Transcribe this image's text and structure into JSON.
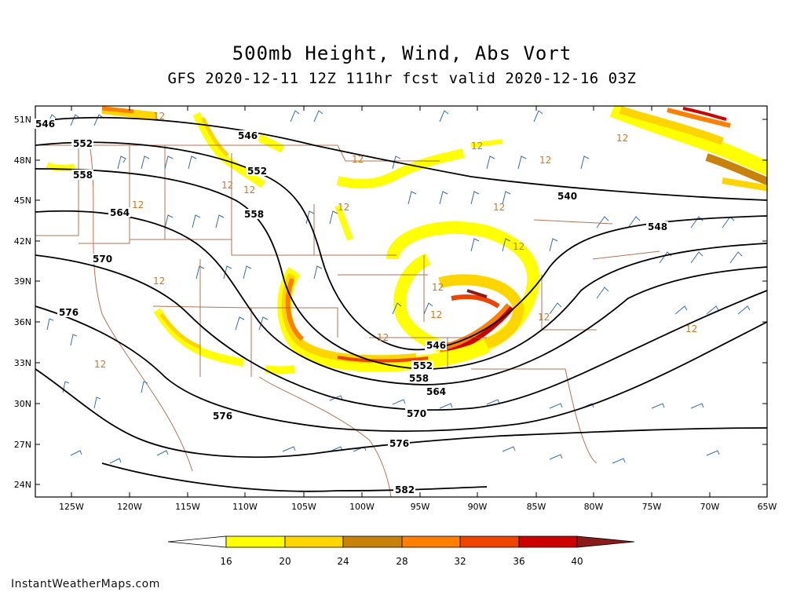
{
  "title": "500mb Height, Wind, Abs Vort",
  "subtitle": "GFS 2020-12-11 12Z 111hr fcst valid 2020-12-16 03Z",
  "credit": "InstantWeatherMaps.com",
  "lat_labels": [
    "51N",
    "48N",
    "45N",
    "42N",
    "39N",
    "36N",
    "33N",
    "30N",
    "27N",
    "24N"
  ],
  "lon_labels": [
    "125W",
    "120W",
    "115W",
    "110W",
    "105W",
    "100W",
    "95W",
    "90W",
    "85W",
    "80W",
    "75W",
    "70W",
    "65W"
  ],
  "colorbar": {
    "labels": [
      "16",
      "20",
      "24",
      "28",
      "32",
      "36",
      "40"
    ],
    "colors": [
      "#ffff00",
      "#ffd500",
      "#c8820a",
      "#ff7f00",
      "#ee4400",
      "#cc0000",
      "#8b1a1a"
    ]
  },
  "height_contour_labels": {
    "c540": "540",
    "c546": "546",
    "c548": "548",
    "c552": "552",
    "c558": "558",
    "c564": "564",
    "c570": "570",
    "c576": "576",
    "c582": "582"
  },
  "vorticity_label": "12",
  "colors": {
    "contour": "#000000",
    "borders": "#a0522d",
    "wind_barbs": "#3a6ea5"
  }
}
